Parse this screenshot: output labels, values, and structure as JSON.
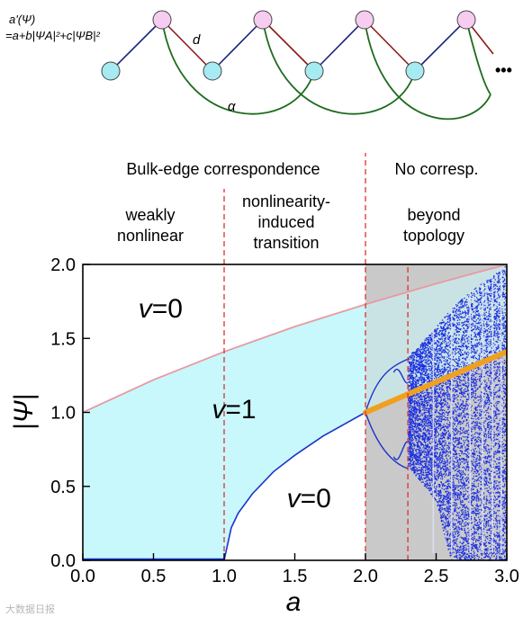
{
  "schematic": {
    "formula_line1": "a'(Ψ)",
    "formula_line2": "=a+b|ΨA|²+c|ΨB|²",
    "bond_label_d": "d",
    "bond_label_alpha": "α",
    "continuation": "•••",
    "colors": {
      "site_A": "#f6cdf0",
      "site_B": "#a6eaf2",
      "bond_a": "#1a237e",
      "bond_d": "#8b1a1a",
      "bond_alpha": "#1e6b1e"
    }
  },
  "headers": {
    "bulk_edge": "Bulk-edge correspondence",
    "no_corresp": "No corresp.",
    "regime1": [
      "weakly",
      "nonlinear"
    ],
    "regime2": [
      "nonlinearity-",
      "induced",
      "transition"
    ],
    "regime3": [
      "beyond",
      "topology"
    ]
  },
  "chart_data": {
    "type": "area",
    "xlabel": "a",
    "ylabel": "|Ψ|",
    "xlim": [
      0.0,
      3.0
    ],
    "ylim": [
      0.0,
      2.0
    ],
    "xticks": [
      "0.0",
      "0.5",
      "1.0",
      "1.5",
      "2.0",
      "2.5",
      "3.0"
    ],
    "yticks": [
      "0.0",
      "0.5",
      "1.0",
      "1.5",
      "2.0"
    ],
    "region_labels": [
      {
        "text": "v=0",
        "var": "v",
        "rest": "=0",
        "at": [
          0.55,
          1.64
        ]
      },
      {
        "text": "v=1",
        "var": "v",
        "rest": "=1",
        "at": [
          1.07,
          0.96
        ]
      },
      {
        "text": "v=0",
        "var": "v",
        "rest": "=0",
        "at": [
          1.6,
          0.36
        ]
      }
    ],
    "vertical_dashed_lines": [
      1.0,
      2.0,
      2.3
    ],
    "shaded_interval": [
      2.0,
      3.0
    ],
    "upper_boundary": {
      "x": [
        0.0,
        0.5,
        1.0,
        1.5,
        2.0,
        2.5,
        3.0
      ],
      "y": [
        1.0,
        1.22,
        1.41,
        1.58,
        1.73,
        1.87,
        2.0
      ]
    },
    "lower_boundary": {
      "x": [
        1.0,
        1.05,
        1.1,
        1.2,
        1.35,
        1.5,
        1.7,
        1.85,
        2.0
      ],
      "y": [
        0.0,
        0.22,
        0.32,
        0.45,
        0.6,
        0.71,
        0.84,
        0.92,
        1.0
      ]
    },
    "orange_line": {
      "x": [
        2.0,
        3.0
      ],
      "y": [
        1.0,
        1.41
      ]
    },
    "chaos_envelope": {
      "x": [
        2.3,
        2.5,
        2.6,
        2.7,
        2.8,
        2.9,
        3.0
      ],
      "top": [
        1.38,
        1.58,
        1.7,
        1.79,
        1.86,
        1.93,
        2.0
      ],
      "bottom": [
        0.64,
        0.4,
        0.0,
        0.0,
        0.0,
        0.0,
        0.0
      ]
    },
    "colors": {
      "topological": "#c8f8fb",
      "boundary_upper": "#e89aa0",
      "boundary_lower": "#1a33cc",
      "orange": "#f0a020",
      "gray_band": "#c9c9c9",
      "dashed": "#e03030",
      "chaos": "#1a2fe0"
    }
  },
  "watermark": "大数据日报"
}
